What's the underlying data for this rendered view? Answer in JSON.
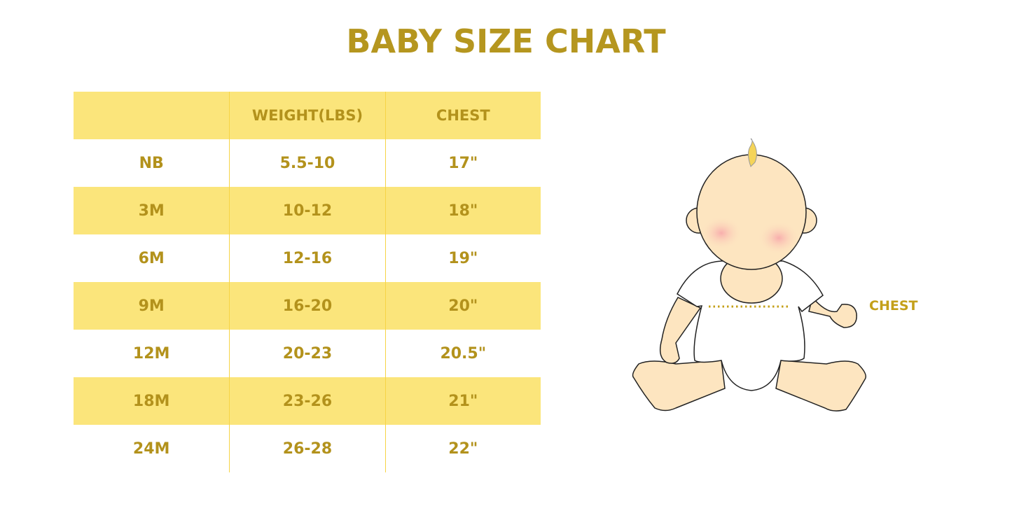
{
  "title": "BABY SIZE CHART",
  "table": {
    "headers": [
      "",
      "WEIGHT(LBS)",
      "CHEST"
    ],
    "rows": [
      [
        "NB",
        "5.5-10",
        "17\""
      ],
      [
        "3M",
        "10-12",
        "18\""
      ],
      [
        "6M",
        "12-16",
        "19\""
      ],
      [
        "9M",
        "16-20",
        "20\""
      ],
      [
        "12M",
        "20-23",
        "20.5\""
      ],
      [
        "18M",
        "23-26",
        "21\""
      ],
      [
        "24M",
        "26-28",
        "22\""
      ]
    ]
  },
  "illustration": {
    "label": "CHEST",
    "icon": "baby-illustration"
  },
  "colors": {
    "accent": "#b5961f",
    "band": "#fbe57b",
    "skin": "#fde5c0"
  }
}
